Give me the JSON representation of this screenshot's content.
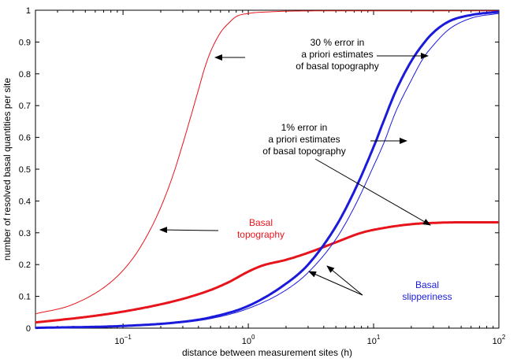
{
  "chart_data": {
    "type": "line",
    "xlabel": "distance between measurement sites (h)",
    "ylabel": "number of resolved basal quantities per site",
    "xscale": "log",
    "xlim": [
      0.02,
      100
    ],
    "ylim": [
      0,
      1
    ],
    "grid": false,
    "x_ticks": [
      {
        "value": 0.1,
        "base": "10",
        "exp": "−1"
      },
      {
        "value": 1,
        "base": "10",
        "exp": "0"
      },
      {
        "value": 10,
        "base": "10",
        "exp": "1"
      },
      {
        "value": 100,
        "base": "10",
        "exp": "2"
      }
    ],
    "y_ticks": [
      {
        "value": 0,
        "label": "0"
      },
      {
        "value": 0.1,
        "label": "0.1"
      },
      {
        "value": 0.2,
        "label": "0.2"
      },
      {
        "value": 0.3,
        "label": "0.3"
      },
      {
        "value": 0.4,
        "label": "0.4"
      },
      {
        "value": 0.5,
        "label": "0.5"
      },
      {
        "value": 0.6,
        "label": "0.6"
      },
      {
        "value": 0.7,
        "label": "0.7"
      },
      {
        "value": 0.8,
        "label": "0.8"
      },
      {
        "value": 0.9,
        "label": "0.9"
      },
      {
        "value": 1,
        "label": "1"
      }
    ],
    "series": [
      {
        "key": "red-thin",
        "color": "#e8141c",
        "stroke": 1,
        "x": [
          0.02,
          0.04,
          0.08,
          0.12,
          0.16,
          0.2,
          0.25,
          0.3,
          0.35,
          0.4,
          0.45,
          0.5,
          0.6,
          0.7,
          0.8,
          1,
          1.5,
          2,
          5,
          100
        ],
        "y": [
          0.045,
          0.075,
          0.145,
          0.22,
          0.3,
          0.38,
          0.48,
          0.58,
          0.67,
          0.75,
          0.82,
          0.87,
          0.93,
          0.96,
          0.98,
          0.99,
          0.995,
          0.997,
          0.998,
          0.998
        ]
      },
      {
        "key": "red-thick",
        "color": "#e8141c",
        "stroke": 3,
        "x": [
          0.02,
          0.05,
          0.1,
          0.2,
          0.3,
          0.5,
          0.7,
          1,
          1.3,
          2,
          3,
          5,
          8,
          12,
          20,
          30,
          50,
          100
        ],
        "y": [
          0.018,
          0.035,
          0.052,
          0.075,
          0.092,
          0.12,
          0.145,
          0.178,
          0.197,
          0.215,
          0.237,
          0.27,
          0.3,
          0.315,
          0.327,
          0.331,
          0.333,
          0.333
        ]
      },
      {
        "key": "blue-thin",
        "color": "#1a1adb",
        "stroke": 1,
        "x": [
          0.02,
          0.1,
          0.3,
          0.5,
          1,
          2,
          3,
          5,
          7,
          10,
          12,
          15,
          20,
          25,
          30,
          40,
          60,
          100
        ],
        "y": [
          0.001,
          0.006,
          0.018,
          0.03,
          0.062,
          0.12,
          0.175,
          0.28,
          0.38,
          0.51,
          0.58,
          0.68,
          0.78,
          0.85,
          0.89,
          0.94,
          0.975,
          0.99
        ]
      },
      {
        "key": "blue-thick",
        "color": "#1a1adb",
        "stroke": 3,
        "x": [
          0.02,
          0.1,
          0.3,
          0.5,
          1,
          2,
          3,
          5,
          7,
          10,
          12,
          15,
          20,
          25,
          30,
          40,
          60,
          100
        ],
        "y": [
          0.001,
          0.007,
          0.02,
          0.034,
          0.07,
          0.14,
          0.2,
          0.32,
          0.43,
          0.57,
          0.65,
          0.745,
          0.84,
          0.895,
          0.93,
          0.965,
          0.985,
          0.995
        ]
      }
    ],
    "annotations": [
      {
        "key": "a30",
        "color": "#000000",
        "lines": [
          "30 %  error in",
          "a priori estimates",
          "of basal topography"
        ]
      },
      {
        "key": "a1",
        "color": "#000000",
        "lines": [
          "1% error in",
          "a priori estimates",
          "of basal topography"
        ]
      },
      {
        "key": "atopo",
        "color": "#e8141c",
        "lines": [
          "Basal",
          "topography"
        ]
      },
      {
        "key": "aslip",
        "color": "#1a1adb",
        "lines": [
          "Basal",
          "slipperiness"
        ]
      }
    ]
  }
}
